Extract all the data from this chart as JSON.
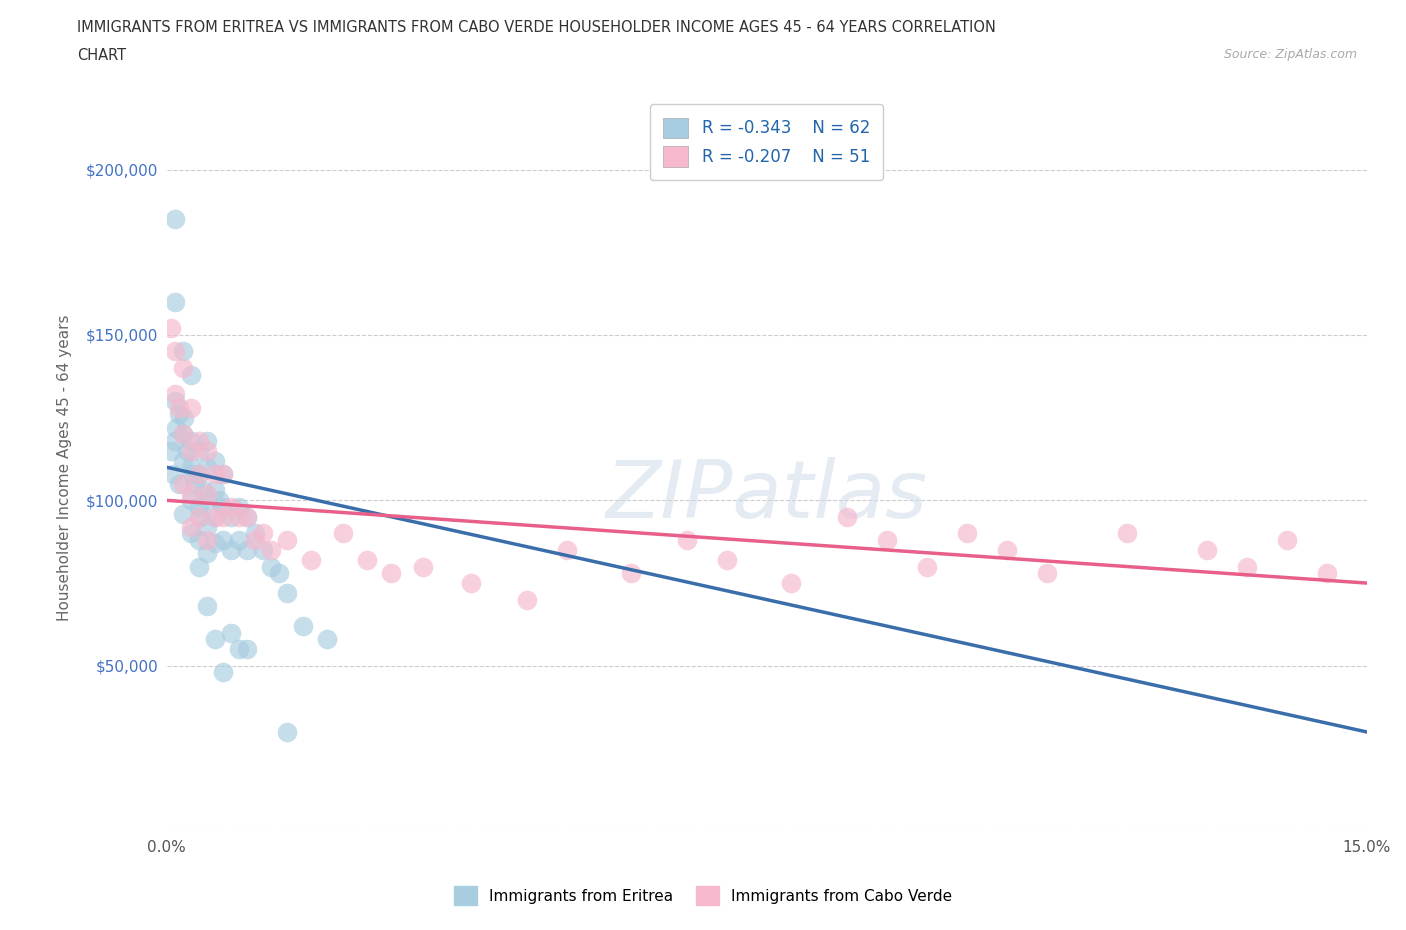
{
  "title_line1": "IMMIGRANTS FROM ERITREA VS IMMIGRANTS FROM CABO VERDE HOUSEHOLDER INCOME AGES 45 - 64 YEARS CORRELATION",
  "title_line2": "CHART",
  "source_text": "Source: ZipAtlas.com",
  "ylabel": "Householder Income Ages 45 - 64 years",
  "xlim": [
    0.0,
    0.15
  ],
  "ylim": [
    0,
    220000
  ],
  "yticks": [
    0,
    50000,
    100000,
    150000,
    200000
  ],
  "ytick_labels": [
    "",
    "$50,000",
    "$100,000",
    "$150,000",
    "$200,000"
  ],
  "xticks": [
    0.0,
    0.03,
    0.06,
    0.09,
    0.12,
    0.15
  ],
  "xtick_labels": [
    "0.0%",
    "",
    "",
    "",
    "",
    "15.0%"
  ],
  "grid_color": "#cccccc",
  "background_color": "#ffffff",
  "watermark_text": "ZIPatlas",
  "legend_R1": "-0.343",
  "legend_N1": "62",
  "legend_R2": "-0.207",
  "legend_N2": "51",
  "color_blue": "#a8cce0",
  "color_pink": "#f5b8cc",
  "color_blue_line": "#3a6eaa",
  "color_pink_line": "#e8608a",
  "legend_label1": "Immigrants from Eritrea",
  "legend_label2": "Immigrants from Cabo Verde",
  "eritrea_x": [
    0.0005,
    0.0008,
    0.001,
    0.001,
    0.0012,
    0.0015,
    0.0015,
    0.002,
    0.002,
    0.002,
    0.0022,
    0.0025,
    0.003,
    0.003,
    0.003,
    0.003,
    0.0032,
    0.0035,
    0.004,
    0.004,
    0.004,
    0.004,
    0.0042,
    0.0045,
    0.005,
    0.005,
    0.005,
    0.005,
    0.005,
    0.006,
    0.006,
    0.006,
    0.006,
    0.0065,
    0.007,
    0.007,
    0.007,
    0.008,
    0.008,
    0.009,
    0.009,
    0.01,
    0.01,
    0.011,
    0.012,
    0.013,
    0.014,
    0.015,
    0.017,
    0.02,
    0.001,
    0.001,
    0.002,
    0.003,
    0.004,
    0.005,
    0.006,
    0.007,
    0.008,
    0.009,
    0.01,
    0.015
  ],
  "eritrea_y": [
    115000,
    108000,
    130000,
    118000,
    122000,
    126000,
    105000,
    120000,
    112000,
    96000,
    125000,
    115000,
    118000,
    110000,
    100000,
    90000,
    108000,
    105000,
    115000,
    108000,
    98000,
    88000,
    95000,
    103000,
    118000,
    110000,
    100000,
    92000,
    84000,
    112000,
    103000,
    95000,
    87000,
    100000,
    108000,
    98000,
    88000,
    95000,
    85000,
    98000,
    88000,
    95000,
    85000,
    90000,
    85000,
    80000,
    78000,
    72000,
    62000,
    58000,
    185000,
    160000,
    145000,
    138000,
    80000,
    68000,
    58000,
    48000,
    60000,
    55000,
    55000,
    30000
  ],
  "caboverde_x": [
    0.0005,
    0.001,
    0.001,
    0.0015,
    0.002,
    0.002,
    0.002,
    0.003,
    0.003,
    0.003,
    0.003,
    0.004,
    0.004,
    0.004,
    0.005,
    0.005,
    0.005,
    0.006,
    0.006,
    0.007,
    0.007,
    0.008,
    0.009,
    0.01,
    0.011,
    0.012,
    0.013,
    0.015,
    0.018,
    0.022,
    0.025,
    0.028,
    0.032,
    0.038,
    0.045,
    0.05,
    0.058,
    0.065,
    0.07,
    0.078,
    0.085,
    0.09,
    0.095,
    0.1,
    0.105,
    0.11,
    0.12,
    0.13,
    0.135,
    0.14,
    0.145
  ],
  "caboverde_y": [
    152000,
    145000,
    132000,
    128000,
    140000,
    120000,
    105000,
    128000,
    115000,
    102000,
    92000,
    118000,
    108000,
    95000,
    115000,
    102000,
    88000,
    108000,
    95000,
    108000,
    95000,
    98000,
    95000,
    95000,
    88000,
    90000,
    85000,
    88000,
    82000,
    90000,
    82000,
    78000,
    80000,
    75000,
    70000,
    85000,
    78000,
    88000,
    82000,
    75000,
    95000,
    88000,
    80000,
    90000,
    85000,
    78000,
    90000,
    85000,
    80000,
    88000,
    78000
  ]
}
